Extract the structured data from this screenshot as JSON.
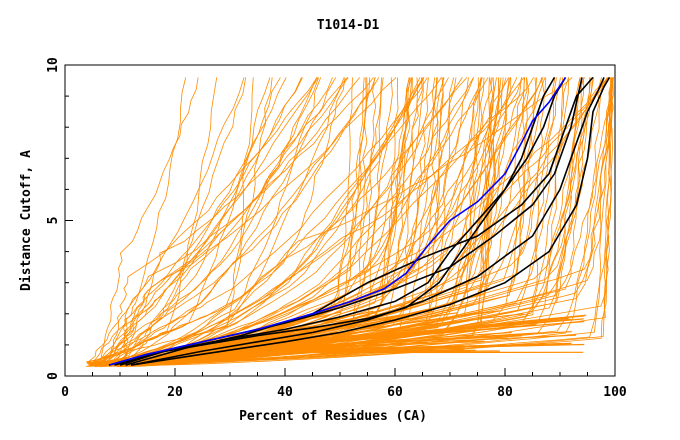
{
  "chart_data": {
    "type": "line",
    "title": "T1014-D1",
    "xlabel": "Percent of Residues (CA)",
    "ylabel": "Distance Cutoff, A",
    "xlim": [
      0,
      100
    ],
    "ylim": [
      0,
      10
    ],
    "xticks": [
      "0",
      "20",
      "40",
      "60",
      "80",
      "100"
    ],
    "yticks": [
      "0",
      "5",
      "10"
    ],
    "grid": false,
    "series_colors": {
      "orange": "#ff8c00",
      "black": "#000000",
      "blue": "#0000ff"
    },
    "orange_series_count": 140,
    "highlighted_series": [
      {
        "name": "black-1",
        "color": "#000000",
        "points": [
          [
            8,
            0.35
          ],
          [
            15,
            0.7
          ],
          [
            25,
            1.0
          ],
          [
            35,
            1.3
          ],
          [
            45,
            1.55
          ],
          [
            55,
            1.85
          ],
          [
            62,
            2.2
          ],
          [
            68,
            3.0
          ],
          [
            72,
            4.0
          ],
          [
            76,
            5.0
          ],
          [
            80,
            6.0
          ],
          [
            83,
            7.0
          ],
          [
            85,
            8.0
          ],
          [
            87,
            9.0
          ],
          [
            89,
            9.6
          ]
        ]
      },
      {
        "name": "black-2",
        "color": "#000000",
        "points": [
          [
            9,
            0.35
          ],
          [
            18,
            0.8
          ],
          [
            30,
            1.2
          ],
          [
            40,
            1.5
          ],
          [
            50,
            1.9
          ],
          [
            60,
            2.4
          ],
          [
            66,
            3.0
          ],
          [
            70,
            4.0
          ],
          [
            75,
            5.0
          ],
          [
            80,
            6.0
          ],
          [
            84,
            7.0
          ],
          [
            87,
            8.0
          ],
          [
            89,
            9.0
          ],
          [
            91,
            9.6
          ]
        ]
      },
      {
        "name": "black-3",
        "color": "#000000",
        "points": [
          [
            10,
            0.35
          ],
          [
            20,
            0.9
          ],
          [
            30,
            1.3
          ],
          [
            40,
            1.7
          ],
          [
            50,
            2.2
          ],
          [
            60,
            2.8
          ],
          [
            70,
            3.5
          ],
          [
            78,
            4.5
          ],
          [
            85,
            5.5
          ],
          [
            89,
            6.5
          ],
          [
            92,
            8.0
          ],
          [
            94,
            9.6
          ]
        ]
      },
      {
        "name": "black-4",
        "color": "#000000",
        "points": [
          [
            11,
            0.35
          ],
          [
            22,
            0.9
          ],
          [
            32,
            1.3
          ],
          [
            45,
            2.0
          ],
          [
            55,
            3.0
          ],
          [
            65,
            3.8
          ],
          [
            75,
            4.5
          ],
          [
            83,
            5.5
          ],
          [
            88,
            6.5
          ],
          [
            91,
            8.0
          ],
          [
            93,
            9.0
          ],
          [
            96,
            9.6
          ]
        ]
      },
      {
        "name": "black-5",
        "color": "#000000",
        "points": [
          [
            12,
            0.35
          ],
          [
            25,
            0.8
          ],
          [
            35,
            1.1
          ],
          [
            45,
            1.4
          ],
          [
            55,
            1.8
          ],
          [
            65,
            2.4
          ],
          [
            75,
            3.2
          ],
          [
            85,
            4.5
          ],
          [
            90,
            6.0
          ],
          [
            93,
            7.5
          ],
          [
            95,
            8.5
          ],
          [
            97,
            9.2
          ],
          [
            98,
            9.6
          ]
        ]
      },
      {
        "name": "black-6",
        "color": "#000000",
        "points": [
          [
            12,
            0.35
          ],
          [
            25,
            0.7
          ],
          [
            40,
            1.1
          ],
          [
            50,
            1.4
          ],
          [
            60,
            1.8
          ],
          [
            70,
            2.3
          ],
          [
            80,
            3.0
          ],
          [
            88,
            4.0
          ],
          [
            93,
            5.5
          ],
          [
            95,
            7.0
          ],
          [
            96,
            8.5
          ],
          [
            98,
            9.3
          ],
          [
            99,
            9.6
          ]
        ]
      },
      {
        "name": "blue-1",
        "color": "#0000ff",
        "points": [
          [
            8,
            0.35
          ],
          [
            15,
            0.7
          ],
          [
            25,
            1.1
          ],
          [
            35,
            1.5
          ],
          [
            45,
            2.0
          ],
          [
            52,
            2.4
          ],
          [
            58,
            2.8
          ],
          [
            62,
            3.3
          ],
          [
            66,
            4.2
          ],
          [
            70,
            5.0
          ],
          [
            75,
            5.6
          ],
          [
            80,
            6.5
          ],
          [
            83,
            7.5
          ],
          [
            85,
            8.2
          ],
          [
            88,
            8.8
          ],
          [
            91,
            9.6
          ]
        ]
      }
    ]
  }
}
